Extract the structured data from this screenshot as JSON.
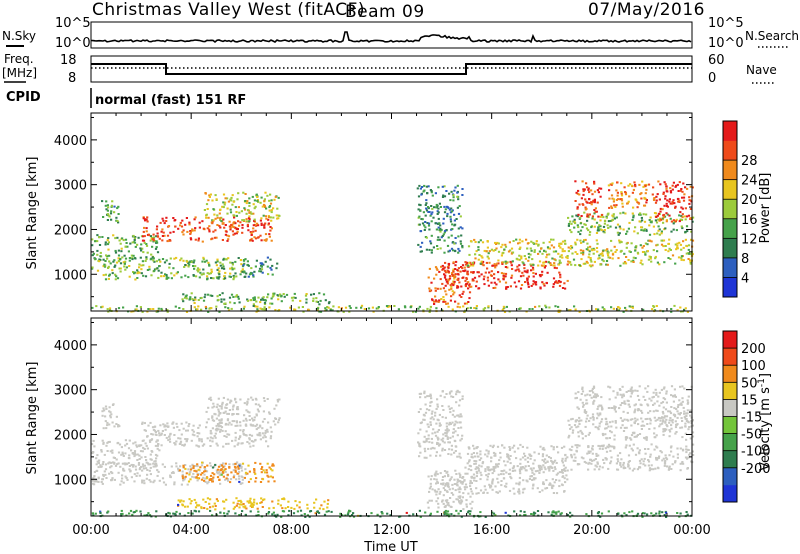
{
  "header": {
    "title": "Christmas Valley West (fitACF)",
    "beam": "Beam 09",
    "date": "07/May/2016"
  },
  "strips": {
    "nsky_label": "N.Sky",
    "nsky_ticks": [
      "10^5",
      "10^0"
    ],
    "nsearch_label": "N.Search",
    "nsearch_ticks": [
      "10^5",
      "10^0"
    ],
    "freq_label": [
      "Freq.",
      "[MHz]"
    ],
    "freq_ticks": [
      "18",
      "8"
    ],
    "nave_label": "Nave",
    "nave_ticks": [
      "60",
      "0"
    ],
    "cpid_label": "CPID",
    "cpid_text": "normal (fast) 151 RF"
  },
  "colors": {
    "power": [
      "#1f35d6",
      "#2d5fbf",
      "#2f7d4f",
      "#45a24a",
      "#9ccb3b",
      "#e8c51f",
      "#f08a1c",
      "#ef4a1a",
      "#e41a1a"
    ],
    "velocity": [
      "#1f35d6",
      "#2d5fbf",
      "#2f7d4f",
      "#45a24a",
      "#73c53a",
      "#c8c8c3",
      "#e8c51f",
      "#f08a1c",
      "#ef4a1a",
      "#e41a1a"
    ]
  },
  "chart_data": [
    {
      "type": "heatmap",
      "title": "Power",
      "ylabel": "Slant Range [km]",
      "xlabel": "",
      "x_ticks": [
        "00:00",
        "04:00",
        "08:00",
        "12:00",
        "16:00",
        "20:00",
        "00:00"
      ],
      "y_ticks": [
        1000,
        2000,
        3000,
        4000
      ],
      "xlim_hours": [
        0,
        24
      ],
      "ylim_km": [
        180,
        4600
      ],
      "colorbar": {
        "label": "Power [dB]",
        "ticks": [
          4,
          8,
          12,
          16,
          20,
          24,
          28
        ]
      },
      "regions": [
        {
          "t0": 0.4,
          "t1": 1.1,
          "r0": 2150,
          "r1": 2700,
          "level": 0.35
        },
        {
          "t0": 0.0,
          "t1": 2.7,
          "r0": 1300,
          "r1": 1900,
          "level": 0.4
        },
        {
          "t0": 2.0,
          "t1": 7.2,
          "r0": 1750,
          "r1": 2300,
          "level": 0.85
        },
        {
          "t0": 4.5,
          "t1": 7.5,
          "r0": 2200,
          "r1": 2850,
          "level": 0.55
        },
        {
          "t0": 0.0,
          "t1": 6.2,
          "r0": 900,
          "r1": 1400,
          "level": 0.45
        },
        {
          "t0": 6.0,
          "t1": 7.4,
          "r0": 950,
          "r1": 1400,
          "level": 0.3
        },
        {
          "t0": 3.4,
          "t1": 9.5,
          "r0": 350,
          "r1": 600,
          "level": 0.4
        },
        {
          "t0": 0.0,
          "t1": 24.0,
          "r0": 180,
          "r1": 320,
          "level": 0.5
        },
        {
          "t0": 13.4,
          "t1": 15.2,
          "r0": 350,
          "r1": 1200,
          "level": 0.8
        },
        {
          "t0": 14.0,
          "t1": 19.0,
          "r0": 700,
          "r1": 1300,
          "level": 0.9
        },
        {
          "t0": 15.0,
          "t1": 24.0,
          "r0": 1200,
          "r1": 1800,
          "level": 0.55
        },
        {
          "t0": 19.0,
          "t1": 24.0,
          "r0": 1900,
          "r1": 2400,
          "level": 0.45
        },
        {
          "t0": 19.3,
          "t1": 20.4,
          "r0": 2300,
          "r1": 3100,
          "level": 0.9
        },
        {
          "t0": 20.6,
          "t1": 22.5,
          "r0": 2500,
          "r1": 3100,
          "level": 0.75
        },
        {
          "t0": 22.5,
          "t1": 24.0,
          "r0": 2200,
          "r1": 3100,
          "level": 0.9
        },
        {
          "t0": 13.0,
          "t1": 14.8,
          "r0": 1500,
          "r1": 3000,
          "level": 0.3
        }
      ]
    },
    {
      "type": "heatmap",
      "title": "Velocity",
      "ylabel": "Slant Range [km]",
      "xlabel": "Time UT",
      "x_ticks": [
        "00:00",
        "04:00",
        "08:00",
        "12:00",
        "16:00",
        "20:00",
        "00:00"
      ],
      "y_ticks": [
        1000,
        2000,
        3000,
        4000
      ],
      "xlim_hours": [
        0,
        24
      ],
      "ylim_km": [
        180,
        4600
      ],
      "colorbar": {
        "label": "Velocity [m s^-1]",
        "ticks": [
          200,
          100,
          50,
          15,
          -15,
          -50,
          -100,
          -200
        ]
      },
      "regions": [
        {
          "t0": 0.4,
          "t1": 1.1,
          "r0": 2150,
          "r1": 2700,
          "level": 0.5
        },
        {
          "t0": 0.0,
          "t1": 2.7,
          "r0": 1300,
          "r1": 1900,
          "level": 0.5
        },
        {
          "t0": 2.0,
          "t1": 7.2,
          "r0": 1750,
          "r1": 2300,
          "level": 0.5
        },
        {
          "t0": 4.5,
          "t1": 7.5,
          "r0": 2200,
          "r1": 2850,
          "level": 0.5
        },
        {
          "t0": 0.0,
          "t1": 6.2,
          "r0": 900,
          "r1": 1400,
          "level": 0.5
        },
        {
          "t0": 3.5,
          "t1": 7.3,
          "r0": 950,
          "r1": 1400,
          "level": 0.72
        },
        {
          "t0": 3.4,
          "t1": 9.5,
          "r0": 350,
          "r1": 600,
          "level": 0.68
        },
        {
          "t0": 0.0,
          "t1": 24.0,
          "r0": 180,
          "r1": 320,
          "level": 0.3
        },
        {
          "t0": 13.4,
          "t1": 15.2,
          "r0": 350,
          "r1": 1200,
          "level": 0.5
        },
        {
          "t0": 14.0,
          "t1": 19.0,
          "r0": 700,
          "r1": 1300,
          "level": 0.5
        },
        {
          "t0": 15.0,
          "t1": 24.0,
          "r0": 1200,
          "r1": 1800,
          "level": 0.5
        },
        {
          "t0": 19.0,
          "t1": 24.0,
          "r0": 1900,
          "r1": 2400,
          "level": 0.5
        },
        {
          "t0": 19.3,
          "t1": 20.4,
          "r0": 2300,
          "r1": 3100,
          "level": 0.5
        },
        {
          "t0": 20.6,
          "t1": 22.5,
          "r0": 2500,
          "r1": 3100,
          "level": 0.5
        },
        {
          "t0": 22.5,
          "t1": 24.0,
          "r0": 2200,
          "r1": 3100,
          "level": 0.5
        },
        {
          "t0": 13.0,
          "t1": 14.8,
          "r0": 1500,
          "r1": 3000,
          "level": 0.5
        }
      ]
    }
  ]
}
